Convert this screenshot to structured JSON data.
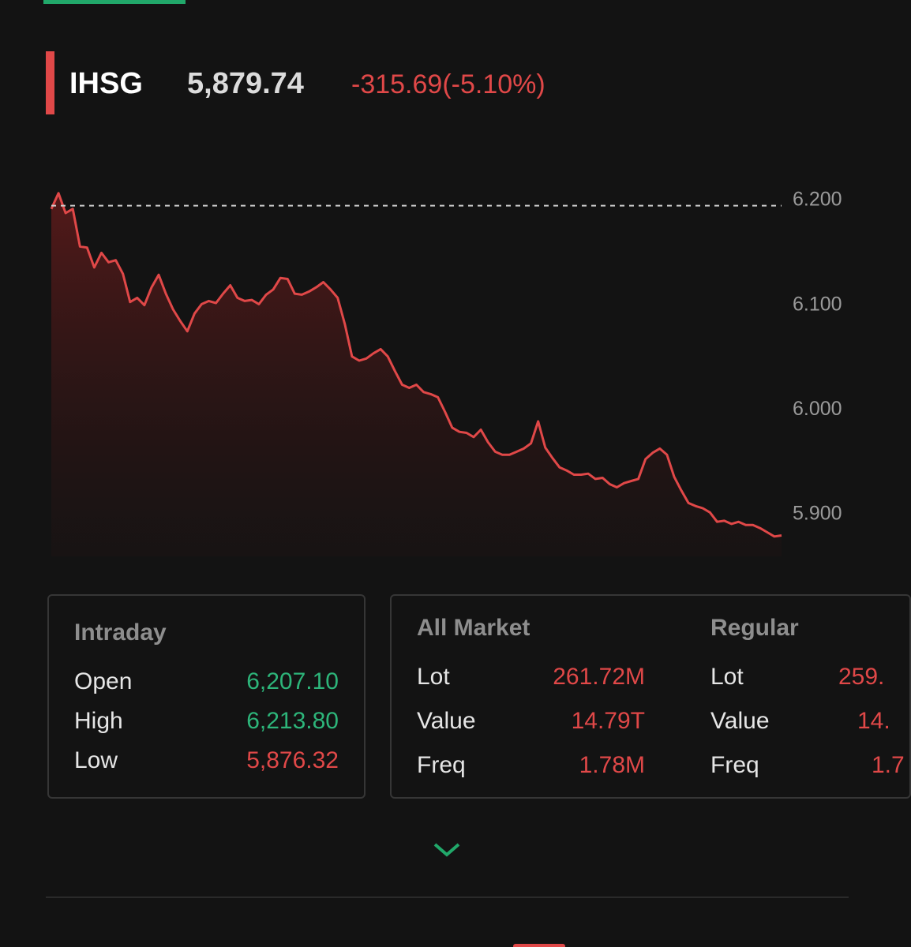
{
  "header": {
    "ticker": "IHSG",
    "price": "5,879.74",
    "change": "-315.69(-5.10%)"
  },
  "chart_data": {
    "type": "line",
    "color": "#e04848",
    "reference_line": 6195,
    "ylim": [
      5860,
      6240
    ],
    "yticks": [
      {
        "value": 6200,
        "label": "6.200"
      },
      {
        "value": 6100,
        "label": "6.100"
      },
      {
        "value": 6000,
        "label": "6.000"
      },
      {
        "value": 5900,
        "label": "5.900"
      }
    ],
    "values": [
      6192,
      6207,
      6188,
      6192,
      6156,
      6155,
      6136,
      6150,
      6141,
      6143,
      6130,
      6103,
      6107,
      6100,
      6117,
      6129,
      6111,
      6096,
      6085,
      6075,
      6092,
      6101,
      6104,
      6102,
      6111,
      6119,
      6107,
      6104,
      6105,
      6101,
      6110,
      6115,
      6126,
      6125,
      6111,
      6110,
      6113,
      6117,
      6122,
      6115,
      6107,
      6082,
      6051,
      6047,
      6049,
      6054,
      6058,
      6051,
      6037,
      6024,
      6021,
      6024,
      6017,
      6015,
      6012,
      5998,
      5983,
      5979,
      5978,
      5974,
      5981,
      5969,
      5960,
      5957,
      5957,
      5960,
      5963,
      5968,
      5989,
      5964,
      5954,
      5945,
      5942,
      5938,
      5938,
      5939,
      5934,
      5935,
      5929,
      5926,
      5930,
      5932,
      5934,
      5953,
      5959,
      5963,
      5957,
      5936,
      5923,
      5911,
      5908,
      5906,
      5902,
      5893,
      5894,
      5891,
      5893,
      5890,
      5890,
      5887,
      5883,
      5879,
      5880
    ]
  },
  "intraday": {
    "title": "Intraday",
    "rows": [
      {
        "label": "Open",
        "value": "6,207.10"
      },
      {
        "label": "High",
        "value": "6,213.80"
      },
      {
        "label": "Low",
        "value": "5,876.32"
      }
    ]
  },
  "all_market": {
    "title": "All Market",
    "rows": [
      {
        "label": "Lot",
        "value": "261.72M"
      },
      {
        "label": "Value",
        "value": "14.79T"
      },
      {
        "label": "Freq",
        "value": "1.78M"
      }
    ]
  },
  "regular": {
    "title": "Regular",
    "rows": [
      {
        "label": "Lot",
        "value": "259."
      },
      {
        "label": "Value",
        "value": "14."
      },
      {
        "label": "Freq",
        "value": "1.7"
      }
    ]
  }
}
